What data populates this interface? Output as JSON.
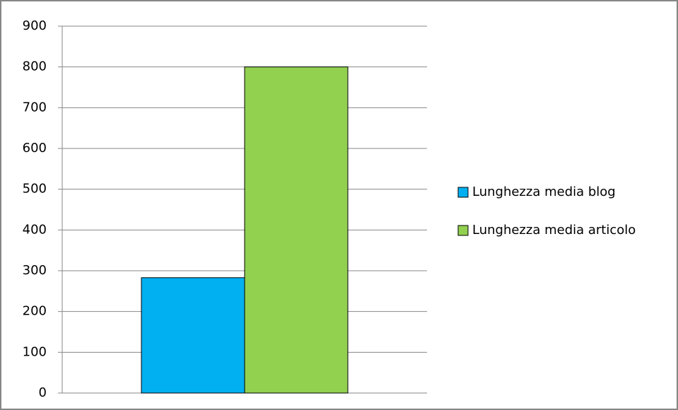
{
  "chart_data": {
    "type": "bar",
    "categories": [
      null
    ],
    "series": [
      {
        "name": "Lunghezza media blog",
        "color": "#00b0f0",
        "values": [
          283
        ]
      },
      {
        "name": "Lunghezza media articolo",
        "color": "#92d050",
        "values": [
          800
        ]
      }
    ],
    "ylim": [
      0,
      900
    ],
    "yticks": [
      0,
      100,
      200,
      300,
      400,
      500,
      600,
      700,
      800,
      900
    ],
    "grid": true,
    "legend": "right"
  }
}
